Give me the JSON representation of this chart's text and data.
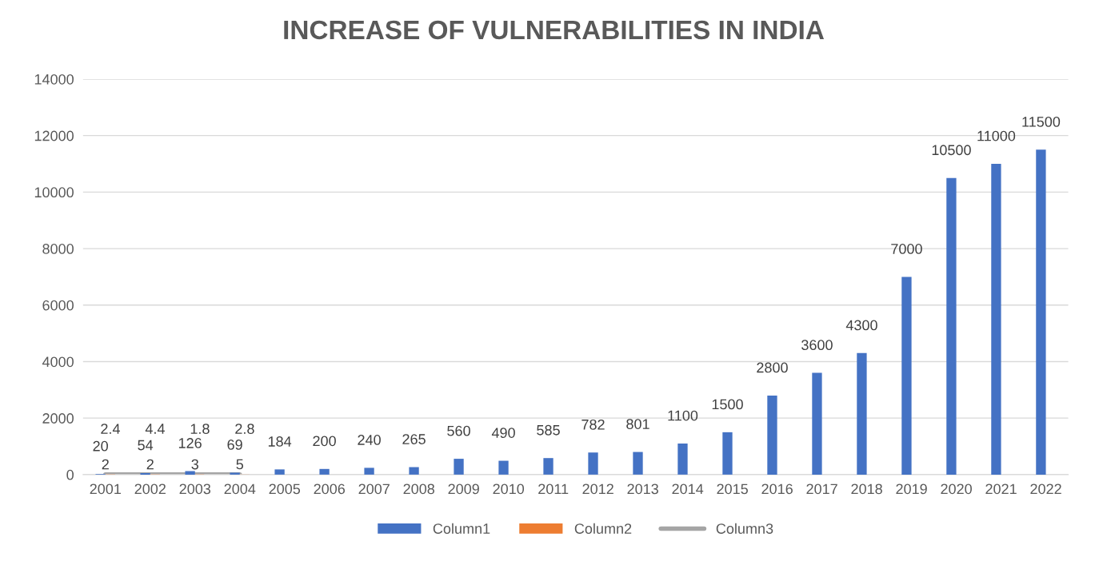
{
  "chart_data": {
    "type": "bar",
    "title": "INCREASE OF VULNERABILITIES IN INDIA",
    "categories": [
      "2001",
      "2002",
      "2003",
      "2004",
      "2005",
      "2006",
      "2007",
      "2008",
      "2009",
      "2010",
      "2011",
      "2012",
      "2013",
      "2014",
      "2015",
      "2016",
      "2017",
      "2018",
      "2019",
      "2020",
      "2021",
      "2022"
    ],
    "series": [
      {
        "name": "Column1",
        "color": "#4472c4",
        "values": [
          20,
          54,
          126,
          69,
          184,
          200,
          240,
          265,
          560,
          490,
          585,
          782,
          801,
          1100,
          1500,
          2800,
          3600,
          4300,
          7000,
          10500,
          11000,
          11500
        ]
      },
      {
        "name": "Column2",
        "color": "#ed7d31",
        "values": [
          2.4,
          4.4,
          1.8,
          2.8,
          null,
          null,
          null,
          null,
          null,
          null,
          null,
          null,
          null,
          null,
          null,
          null,
          null,
          null,
          null,
          null,
          null,
          null
        ]
      },
      {
        "name": "Column3",
        "type": "line",
        "color": "#a5a5a5",
        "values": [
          2,
          2,
          3,
          5,
          null,
          null,
          null,
          null,
          null,
          null,
          null,
          null,
          null,
          null,
          null,
          null,
          null,
          null,
          null,
          null,
          null,
          null
        ]
      }
    ],
    "ylim": [
      0,
      14000
    ],
    "yticks": [
      0,
      2000,
      4000,
      6000,
      8000,
      10000,
      12000,
      14000
    ],
    "grid": "y",
    "legend": "bottom",
    "data_labels": true
  }
}
